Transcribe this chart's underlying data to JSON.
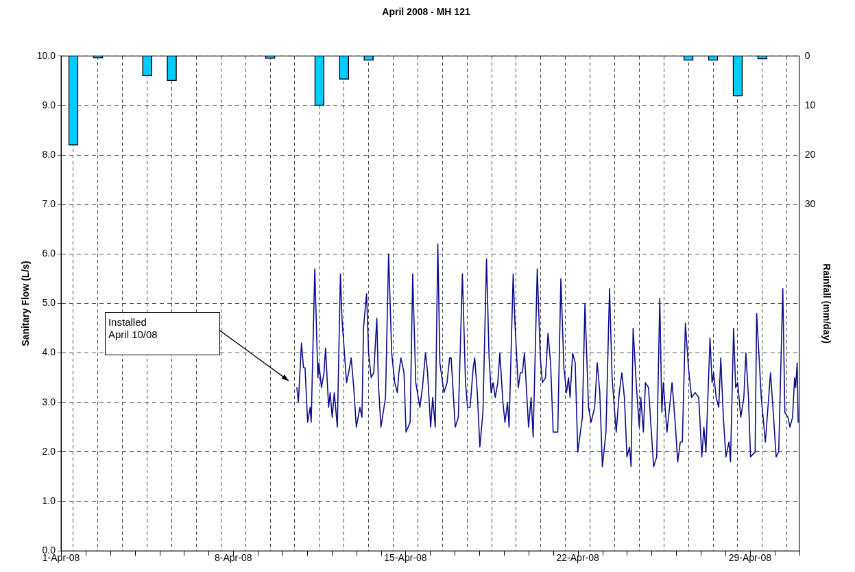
{
  "chart_data": {
    "type": "line",
    "title": "April 2008 - MH 121",
    "ylabel": "Sanitary Flow (L/s)",
    "y2label": "Rainfall (mm/day)",
    "xlim": [
      "2008-04-01",
      "2008-05-01"
    ],
    "xticks": [
      {
        "value": "2008-04-01",
        "label": "1-Apr-08"
      },
      {
        "value": "2008-04-02",
        "label": null
      },
      {
        "value": "2008-04-03",
        "label": null
      },
      {
        "value": "2008-04-04",
        "label": null
      },
      {
        "value": "2008-04-05",
        "label": null
      },
      {
        "value": "2008-04-06",
        "label": null
      },
      {
        "value": "2008-04-07",
        "label": null
      },
      {
        "value": "2008-04-08",
        "label": "8-Apr-08"
      },
      {
        "value": "2008-04-09",
        "label": null
      },
      {
        "value": "2008-04-10",
        "label": null
      },
      {
        "value": "2008-04-11",
        "label": null
      },
      {
        "value": "2008-04-12",
        "label": null
      },
      {
        "value": "2008-04-13",
        "label": null
      },
      {
        "value": "2008-04-14",
        "label": null
      },
      {
        "value": "2008-04-15",
        "label": "15-Apr-08"
      },
      {
        "value": "2008-04-16",
        "label": null
      },
      {
        "value": "2008-04-17",
        "label": null
      },
      {
        "value": "2008-04-18",
        "label": null
      },
      {
        "value": "2008-04-19",
        "label": null
      },
      {
        "value": "2008-04-20",
        "label": null
      },
      {
        "value": "2008-04-21",
        "label": null
      },
      {
        "value": "2008-04-22",
        "label": "22-Apr-08"
      },
      {
        "value": "2008-04-23",
        "label": null
      },
      {
        "value": "2008-04-24",
        "label": null
      },
      {
        "value": "2008-04-25",
        "label": null
      },
      {
        "value": "2008-04-26",
        "label": null
      },
      {
        "value": "2008-04-27",
        "label": null
      },
      {
        "value": "2008-04-28",
        "label": null
      },
      {
        "value": "2008-04-29",
        "label": "29-Apr-08"
      },
      {
        "value": "2008-04-30",
        "label": null
      },
      {
        "value": "2008-05-01",
        "label": null
      }
    ],
    "ylim": [
      0,
      10
    ],
    "yticks": [
      {
        "value": 0,
        "label": "0.0"
      },
      {
        "value": 1,
        "label": "1.0"
      },
      {
        "value": 2,
        "label": "2.0"
      },
      {
        "value": 3,
        "label": "3.0"
      },
      {
        "value": 4,
        "label": "4.0"
      },
      {
        "value": 5,
        "label": "5.0"
      },
      {
        "value": 6,
        "label": "6.0"
      },
      {
        "value": 7,
        "label": "7.0"
      },
      {
        "value": 8,
        "label": "8.0"
      },
      {
        "value": 9,
        "label": "9.0"
      },
      {
        "value": 10,
        "label": "10.0"
      }
    ],
    "y2lim": [
      100,
      0
    ],
    "y2ticks": [
      0,
      10,
      20,
      30
    ],
    "grid": true,
    "marker": "none",
    "line_style": "solid",
    "annotations": [
      "Installed\nApril 10/08"
    ],
    "series": [
      {
        "type": "bar",
        "axis": "y2",
        "color": "#00ccff",
        "x": [
          "2008-04-01T12:00",
          "2008-04-02T12:00",
          "2008-04-04T12:00",
          "2008-04-05T12:00",
          "2008-04-09T12:00",
          "2008-04-11T12:00",
          "2008-04-12T12:00",
          "2008-04-13T12:00",
          "2008-04-26T12:00",
          "2008-04-27T12:00",
          "2008-04-28T12:00",
          "2008-04-29T12:00"
        ],
        "values": [
          18,
          0.4,
          4,
          5,
          0.5,
          10,
          4.7,
          0.9,
          0.9,
          0.9,
          8.1,
          0.6
        ]
      },
      {
        "color": "#0d0d8c",
        "x": [
          "2008-04-10T14:00",
          "2008-04-10T15:30",
          "2008-04-10T18:30",
          "2008-04-10T20:30",
          "2008-04-10T22:00",
          "2008-04-11T00:30",
          "2008-04-11T03:00",
          "2008-04-11T04:00",
          "2008-04-11T07:30",
          "2008-04-11T10:30",
          "2008-04-11T11:30",
          "2008-04-11T14:00",
          "2008-04-11T16:30",
          "2008-04-11T18:00",
          "2008-04-11T21:00",
          "2008-04-11T22:30",
          "2008-04-12T00:30",
          "2008-04-12T02:30",
          "2008-04-12T05:30",
          "2008-04-12T08:30",
          "2008-04-12T10:00",
          "2008-04-12T14:30",
          "2008-04-12T16:30",
          "2008-04-12T19:00",
          "2008-04-12T21:30",
          "2008-04-13T00:00",
          "2008-04-13T03:30",
          "2008-04-13T05:30",
          "2008-04-13T07:00",
          "2008-04-13T10:00",
          "2008-04-13T12:00",
          "2008-04-13T14:30",
          "2008-04-13T17:00",
          "2008-04-13T20:00",
          "2008-04-13T21:30",
          "2008-04-14T00:00",
          "2008-04-14T04:30",
          "2008-04-14T07:30",
          "2008-04-14T10:30",
          "2008-04-14T13:30",
          "2008-04-14T16:00",
          "2008-04-14T17:30",
          "2008-04-14T19:30",
          "2008-04-14T22:30",
          "2008-04-15T00:30",
          "2008-04-15T04:30",
          "2008-04-15T07:00",
          "2008-04-15T10:00",
          "2008-04-15T14:00",
          "2008-04-15T16:30",
          "2008-04-15T19:30",
          "2008-04-15T21:30",
          "2008-04-16T00:30",
          "2008-04-16T02:30",
          "2008-04-16T05:00",
          "2008-04-16T07:30",
          "2008-04-16T09:30",
          "2008-04-16T13:30",
          "2008-04-16T16:30",
          "2008-04-16T19:00",
          "2008-04-16T20:30",
          "2008-04-17T00:30",
          "2008-04-17T03:30",
          "2008-04-17T07:30",
          "2008-04-17T10:30",
          "2008-04-17T12:30",
          "2008-04-17T15:00",
          "2008-04-17T18:00",
          "2008-04-17T19:30",
          "2008-04-17T22:00",
          "2008-04-18T00:30",
          "2008-04-18T03:30",
          "2008-04-18T07:00",
          "2008-04-18T09:30",
          "2008-04-18T11:30",
          "2008-04-18T13:30",
          "2008-04-18T15:30",
          "2008-04-18T18:00",
          "2008-04-18T20:00",
          "2008-04-18T23:00",
          "2008-04-19T01:00",
          "2008-04-19T03:30",
          "2008-04-19T05:00",
          "2008-04-19T09:00",
          "2008-04-19T10:30",
          "2008-04-19T14:00",
          "2008-04-19T16:00",
          "2008-04-19T18:00",
          "2008-04-19T20:00",
          "2008-04-20T00:00",
          "2008-04-20T02:30",
          "2008-04-20T04:30",
          "2008-04-20T08:30",
          "2008-04-20T11:30",
          "2008-04-20T13:30",
          "2008-04-20T16:30",
          "2008-04-20T19:00",
          "2008-04-20T21:30",
          "2008-04-21T00:00",
          "2008-04-21T04:30",
          "2008-04-21T07:30",
          "2008-04-21T10:30",
          "2008-04-21T13:00",
          "2008-04-21T15:00",
          "2008-04-21T16:30",
          "2008-04-21T19:00",
          "2008-04-21T21:30",
          "2008-04-22T00:00",
          "2008-04-22T04:30",
          "2008-04-22T07:00",
          "2008-04-22T10:30",
          "2008-04-22T13:00",
          "2008-04-22T16:30",
          "2008-04-22T19:00",
          "2008-04-22T21:30",
          "2008-04-23T00:00",
          "2008-04-23T03:30",
          "2008-04-23T07:00",
          "2008-04-23T09:30",
          "2008-04-23T13:30",
          "2008-04-23T16:30",
          "2008-04-23T19:00",
          "2008-04-23T21:30",
          "2008-04-24T00:00",
          "2008-04-24T02:30",
          "2008-04-24T04:00",
          "2008-04-24T06:00",
          "2008-04-24T09:00",
          "2008-04-24T12:00",
          "2008-04-24T13:30",
          "2008-04-24T16:00",
          "2008-04-24T18:00",
          "2008-04-24T21:00",
          "2008-04-25T02:00",
          "2008-04-25T05:00",
          "2008-04-25T08:00",
          "2008-04-25T10:00",
          "2008-04-25T11:30",
          "2008-04-25T15:00",
          "2008-04-25T18:00",
          "2008-04-25T20:00",
          "2008-04-25T23:00",
          "2008-04-26T01:30",
          "2008-04-26T04:00",
          "2008-04-26T06:00",
          "2008-04-26T09:00",
          "2008-04-26T12:00",
          "2008-04-26T15:00",
          "2008-04-26T18:30",
          "2008-04-26T22:00",
          "2008-04-27T01:00",
          "2008-04-27T03:00",
          "2008-04-27T05:00",
          "2008-04-27T09:00",
          "2008-04-27T11:00",
          "2008-04-27T12:30",
          "2008-04-27T15:00",
          "2008-04-27T17:30",
          "2008-04-27T19:30",
          "2008-04-27T22:00",
          "2008-04-28T00:30",
          "2008-04-28T03:30",
          "2008-04-28T05:00",
          "2008-04-28T08:00",
          "2008-04-28T10:00",
          "2008-04-28T12:00",
          "2008-04-28T15:00",
          "2008-04-28T18:00",
          "2008-04-28T20:00",
          "2008-04-28T22:30",
          "2008-04-29T00:30",
          "2008-04-29T05:00",
          "2008-04-29T06:30",
          "2008-04-29T11:00",
          "2008-04-29T15:00",
          "2008-04-29T17:30",
          "2008-04-29T20:00",
          "2008-04-29T23:00",
          "2008-04-30T01:30",
          "2008-04-30T04:00",
          "2008-04-30T08:00",
          "2008-04-30T10:00",
          "2008-04-30T13:00",
          "2008-04-30T15:00",
          "2008-04-30T17:30",
          "2008-04-30T19:30",
          "2008-04-30T20:30",
          "2008-04-30T22:00",
          "2008-04-30T23:00"
        ],
        "values": [
          3.3,
          3.0,
          4.2,
          3.7,
          3.7,
          2.6,
          2.9,
          2.6,
          5.7,
          3.5,
          3.8,
          3.3,
          3.6,
          4.1,
          2.9,
          3.2,
          2.7,
          3.2,
          2.5,
          5.6,
          4.7,
          3.4,
          3.6,
          3.9,
          3.3,
          2.5,
          2.9,
          2.7,
          4.5,
          5.2,
          4.0,
          3.5,
          3.6,
          4.7,
          3.4,
          2.5,
          3.1,
          6.0,
          4.0,
          3.4,
          3.2,
          3.6,
          3.9,
          3.6,
          2.4,
          2.6,
          5.6,
          3.4,
          2.9,
          3.3,
          4.0,
          3.6,
          2.5,
          3.1,
          2.5,
          6.2,
          3.8,
          3.2,
          3.4,
          3.9,
          3.9,
          2.5,
          2.7,
          5.6,
          3.4,
          2.9,
          2.9,
          3.7,
          3.9,
          3.2,
          2.1,
          2.8,
          5.9,
          3.9,
          3.2,
          3.4,
          3.1,
          3.4,
          4.0,
          3.0,
          2.6,
          3.0,
          2.5,
          5.6,
          4.7,
          3.3,
          3.6,
          3.6,
          4.0,
          2.5,
          3.1,
          2.3,
          5.7,
          3.9,
          3.4,
          3.5,
          4.4,
          3.8,
          2.4,
          2.4,
          5.5,
          3.7,
          3.2,
          3.5,
          3.1,
          4.0,
          3.8,
          2.0,
          2.7,
          5.0,
          2.9,
          2.6,
          2.9,
          3.8,
          3.2,
          1.7,
          2.4,
          5.3,
          3.5,
          2.4,
          3.2,
          3.6,
          3.1,
          1.9,
          2.1,
          1.7,
          4.5,
          3.4,
          2.5,
          3.1,
          2.4,
          3.4,
          3.3,
          1.7,
          1.9,
          5.1,
          2.8,
          3.4,
          2.4,
          3.0,
          3.4,
          2.6,
          1.8,
          2.2,
          2.2,
          4.6,
          3.7,
          3.1,
          3.2,
          3.1,
          1.9,
          2.5,
          2.0,
          4.3,
          3.4,
          3.6,
          3.1,
          2.9,
          3.9,
          2.7,
          1.9,
          2.2,
          1.8,
          4.5,
          3.3,
          3.4,
          2.7,
          3.1,
          4.0,
          3.1,
          1.9,
          2.0,
          4.8,
          3.1,
          2.2,
          2.9,
          3.6,
          2.7,
          1.9,
          2.0,
          5.3,
          2.8,
          2.7,
          2.5,
          2.7,
          3.5,
          3.3,
          3.8,
          2.6
        ]
      }
    ]
  }
}
